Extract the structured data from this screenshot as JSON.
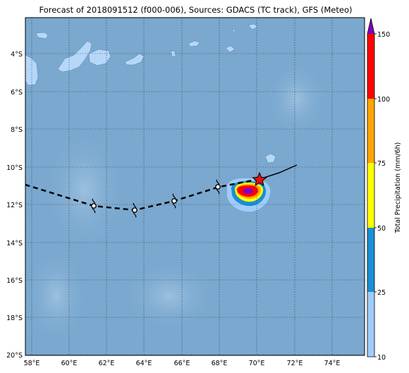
{
  "title": "Forecast of 2018091512 (f000-006), Sources: GDACS (TC track), GFS (Meteo)",
  "map": {
    "lon_ticks": [
      "58°E",
      "60°E",
      "62°E",
      "64°E",
      "66°E",
      "68°E",
      "70°E",
      "72°E",
      "74°E"
    ],
    "lat_ticks": [
      "4°S",
      "6°S",
      "8°S",
      "10°S",
      "12°S",
      "14°S",
      "16°S",
      "18°S",
      "20°S"
    ],
    "ocean_color": "#7aa8cf",
    "land_color": "#b5d8f8",
    "track": {
      "observed": [
        {
          "lon": 70.1,
          "lat": -10.7
        },
        {
          "lon": 71.2,
          "lat": -10.35
        },
        {
          "lon": 72.1,
          "lat": -9.9
        }
      ],
      "forecast": [
        {
          "lon": 70.1,
          "lat": -10.7
        },
        {
          "lon": 68.0,
          "lat": -11.1
        },
        {
          "lon": 65.6,
          "lat": -11.8
        },
        {
          "lon": 63.5,
          "lat": -12.3
        },
        {
          "lon": 61.3,
          "lat": -12.1
        },
        {
          "lon": 57.7,
          "lat": -11.0
        }
      ],
      "symbols": [
        {
          "lon": 68.0,
          "lat": -11.1
        },
        {
          "lon": 65.6,
          "lat": -11.8
        },
        {
          "lon": 63.5,
          "lat": -12.3
        },
        {
          "lon": 61.3,
          "lat": -12.1
        }
      ],
      "current_position": {
        "lon": 70.1,
        "lat": -10.7
      }
    }
  },
  "colorbar": {
    "label": "Total Precipitation (mm/6h)",
    "ticks": [
      "10",
      "25",
      "50",
      "75",
      "100",
      "150"
    ],
    "colors": [
      "#9fcdfb",
      "#1a8fd6",
      "#ffff00",
      "#ffa500",
      "#ff0000",
      "#8000c0"
    ]
  }
}
